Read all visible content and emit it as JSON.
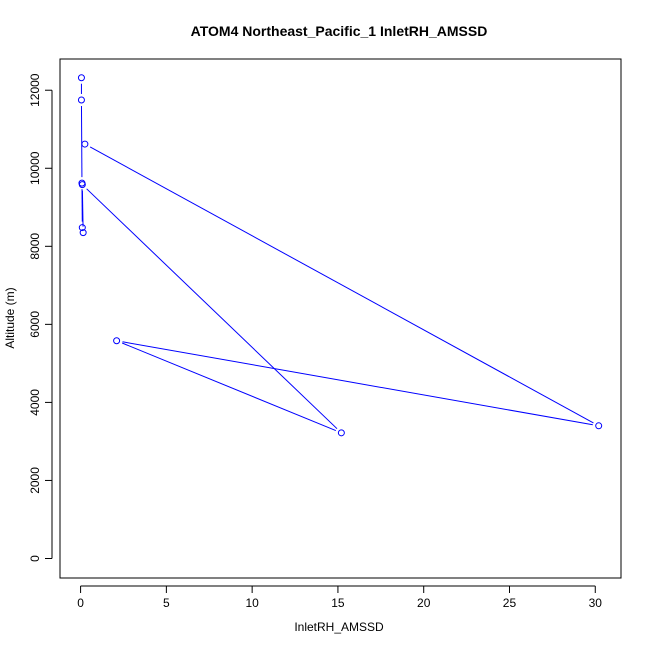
{
  "chart_data": {
    "type": "line",
    "title": "ATOM4 Northeast_Pacific_1 InletRH_AMSSD",
    "xlabel": "InletRH_AMSSD",
    "ylabel": "Altitude (m)",
    "xlim": [
      -1.2,
      31.5
    ],
    "ylim": [
      -500,
      12800
    ],
    "x_ticks": [
      0,
      5,
      10,
      15,
      20,
      25,
      30
    ],
    "y_ticks": [
      0,
      2000,
      4000,
      6000,
      8000,
      10000,
      12000
    ],
    "series": [
      {
        "color": "#0000ff",
        "markers": "open-circle",
        "points": [
          {
            "x": 0.05,
            "y": 12320
          },
          {
            "x": 0.05,
            "y": 11750
          },
          {
            "x": 0.08,
            "y": 9620
          },
          {
            "x": 0.1,
            "y": 8480
          },
          {
            "x": 0.15,
            "y": 8350
          },
          {
            "x": 0.1,
            "y": 9580
          },
          {
            "x": 15.2,
            "y": 3220
          },
          {
            "x": 2.1,
            "y": 5580
          },
          {
            "x": 30.2,
            "y": 3400
          },
          {
            "x": 0.25,
            "y": 10620
          }
        ]
      }
    ]
  }
}
